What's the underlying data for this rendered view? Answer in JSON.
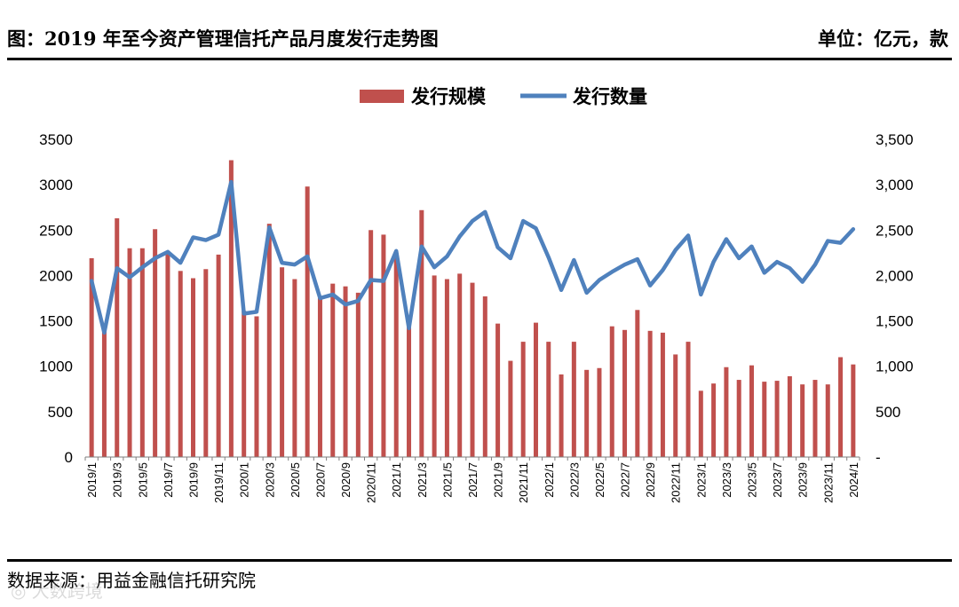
{
  "header": {
    "title": "图：2019 年至今资产管理信托产品月度发行走势图",
    "unit": "单位：亿元，款"
  },
  "footer": {
    "source": "数据来源：用益金融信托研究院",
    "watermark": "◎ 大数跨境"
  },
  "colors": {
    "bar": "#c0504d",
    "line": "#4f81bd"
  },
  "chart_data": {
    "type": "bar+line",
    "title": "",
    "legend": [
      "发行规模",
      "发行数量"
    ],
    "legend_position": "top-center",
    "categories": [
      "2019/1",
      "2019/2",
      "2019/3",
      "2019/4",
      "2019/5",
      "2019/6",
      "2019/7",
      "2019/8",
      "2019/9",
      "2019/10",
      "2019/11",
      "2019/12",
      "2020/1",
      "2020/2",
      "2020/3",
      "2020/4",
      "2020/5",
      "2020/6",
      "2020/7",
      "2020/8",
      "2020/9",
      "2020/10",
      "2020/11",
      "2020/12",
      "2021/1",
      "2021/2",
      "2021/3",
      "2021/4",
      "2021/5",
      "2021/6",
      "2021/7",
      "2021/8",
      "2021/9",
      "2021/10",
      "2021/11",
      "2021/12",
      "2022/1",
      "2022/2",
      "2022/3",
      "2022/4",
      "2022/5",
      "2022/6",
      "2022/7",
      "2022/8",
      "2022/9",
      "2022/10",
      "2022/11",
      "2022/12",
      "2023/1",
      "2023/2",
      "2023/3",
      "2023/4",
      "2023/5",
      "2023/6",
      "2023/7",
      "2023/8",
      "2023/9",
      "2023/10",
      "2023/11",
      "2023/12",
      "2024/1"
    ],
    "x_tick_labels": [
      "2019/1",
      "2019/3",
      "2019/5",
      "2019/7",
      "2019/9",
      "2019/11",
      "2020/1",
      "2020/3",
      "2020/5",
      "2020/7",
      "2020/9",
      "2020/11",
      "2021/1",
      "2021/3",
      "2021/5",
      "2021/7",
      "2021/9",
      "2021/11",
      "2022/1",
      "2022/3",
      "2022/5",
      "2022/7",
      "2022/9",
      "2022/11",
      "2023/1",
      "2023/3",
      "2023/5",
      "2023/7",
      "2023/9",
      "2023/11",
      "2024/1"
    ],
    "series": [
      {
        "name": "发行规模",
        "type": "bar",
        "axis": "left",
        "values": [
          2190,
          1400,
          2630,
          2300,
          2300,
          2510,
          2270,
          2050,
          1970,
          2070,
          2230,
          3270,
          1610,
          1550,
          2570,
          2090,
          1960,
          2980,
          1750,
          1910,
          1880,
          1810,
          2500,
          2450,
          2210,
          1450,
          2720,
          2000,
          1960,
          2020,
          1920,
          1770,
          1470,
          1060,
          1270,
          1480,
          1270,
          910,
          1270,
          960,
          980,
          1440,
          1400,
          1620,
          1390,
          1370,
          1130,
          1270,
          730,
          810,
          990,
          850,
          1010,
          830,
          840,
          890,
          800,
          850,
          800,
          1100,
          1020
        ]
      },
      {
        "name": "发行数量",
        "type": "line",
        "axis": "right",
        "values": [
          1940,
          1370,
          2080,
          1980,
          2090,
          2190,
          2260,
          2140,
          2420,
          2390,
          2450,
          3030,
          1580,
          1600,
          2530,
          2140,
          2120,
          2210,
          1750,
          1790,
          1680,
          1720,
          1950,
          1940,
          2270,
          1420,
          2320,
          2090,
          2210,
          2430,
          2600,
          2700,
          2310,
          2190,
          2600,
          2520,
          2200,
          1840,
          2170,
          1810,
          1950,
          2040,
          2120,
          2180,
          1890,
          2060,
          2280,
          2440,
          1790,
          2150,
          2400,
          2190,
          2320,
          2030,
          2150,
          2080,
          1930,
          2120,
          2380,
          2360,
          2510
        ]
      }
    ],
    "y_left": {
      "min": 0,
      "max": 3500,
      "step": 500,
      "tick_labels": [
        "0",
        "500",
        "1000",
        "1500",
        "2000",
        "2500",
        "3000",
        "3500"
      ]
    },
    "y_right": {
      "min": 0,
      "max": 3500,
      "step": 500,
      "tick_labels": [
        "-",
        "500",
        "1,000",
        "1,500",
        "2,000",
        "2,500",
        "3,000",
        "3,500"
      ]
    },
    "grid": false
  }
}
